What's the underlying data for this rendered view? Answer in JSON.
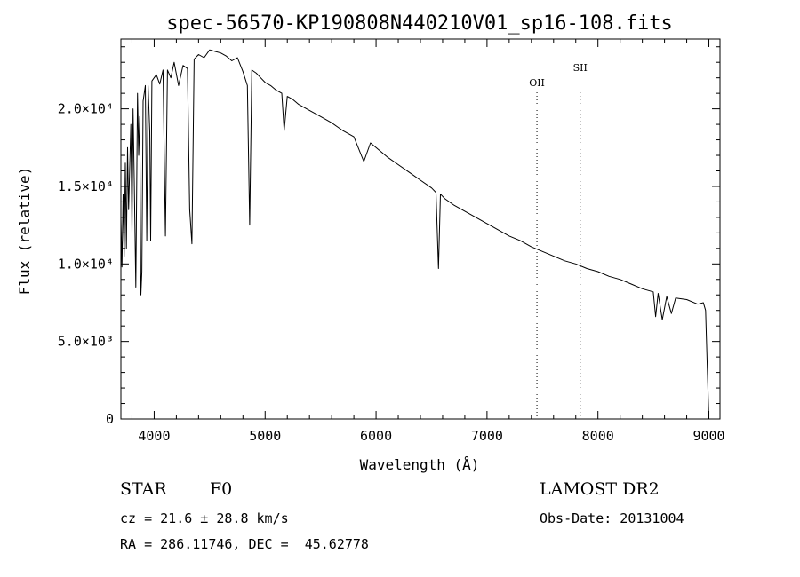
{
  "chart_data": {
    "type": "line",
    "title": "spec-56570-KP190808N440210V01_sp16-108.fits",
    "xlabel": "Wavelength (Å)",
    "ylabel": "Flux (relative)",
    "xlim": [
      3700,
      9100
    ],
    "ylim": [
      0,
      24500
    ],
    "grid": false,
    "x_ticks": [
      {
        "value": 4000,
        "label": "4000"
      },
      {
        "value": 5000,
        "label": "5000"
      },
      {
        "value": 6000,
        "label": "6000"
      },
      {
        "value": 7000,
        "label": "7000"
      },
      {
        "value": 8000,
        "label": "8000"
      },
      {
        "value": 9000,
        "label": "9000"
      }
    ],
    "y_ticks": [
      {
        "value": 0,
        "label": "0"
      },
      {
        "value": 5000,
        "label": "5.0×10³"
      },
      {
        "value": 10000,
        "label": "1.0×10⁴"
      },
      {
        "value": 15000,
        "label": "1.5×10⁴"
      },
      {
        "value": 20000,
        "label": "2.0×10⁴"
      }
    ],
    "lines": [
      {
        "name": "OII",
        "x": 7450
      },
      {
        "name": "SII",
        "x": 7840
      }
    ],
    "series": [
      {
        "x": [
          3700,
          3710,
          3720,
          3730,
          3740,
          3750,
          3760,
          3770,
          3790,
          3800,
          3810,
          3820,
          3835,
          3850,
          3860,
          3870,
          3880,
          3889,
          3900,
          3920,
          3933,
          3945,
          3960,
          3968,
          3980,
          4000,
          4020,
          4050,
          4080,
          4101,
          4120,
          4150,
          4180,
          4220,
          4260,
          4300,
          4320,
          4340,
          4360,
          4400,
          4450,
          4500,
          4550,
          4600,
          4650,
          4700,
          4750,
          4800,
          4840,
          4861,
          4880,
          4920,
          4960,
          5000,
          5050,
          5100,
          5150,
          5172,
          5200,
          5250,
          5300,
          5400,
          5500,
          5600,
          5700,
          5800,
          5890,
          5950,
          6000,
          6100,
          6200,
          6300,
          6400,
          6500,
          6540,
          6563,
          6580,
          6620,
          6700,
          6800,
          6900,
          7000,
          7100,
          7200,
          7300,
          7400,
          7500,
          7600,
          7700,
          7800,
          7900,
          8000,
          8100,
          8200,
          8300,
          8400,
          8498,
          8520,
          8542,
          8580,
          8620,
          8662,
          8700,
          8800,
          8900,
          8950,
          8970,
          8985,
          9000
        ],
        "y": [
          13000,
          9800,
          14500,
          10500,
          16500,
          11000,
          17500,
          13500,
          19000,
          12000,
          20000,
          15500,
          8500,
          21000,
          17000,
          19500,
          8000,
          9500,
          20500,
          21500,
          11500,
          21500,
          18500,
          11500,
          21800,
          22000,
          22200,
          21600,
          22500,
          11800,
          22500,
          22000,
          23000,
          21500,
          22800,
          22600,
          13500,
          11300,
          23200,
          23500,
          23300,
          23800,
          23700,
          23600,
          23400,
          23100,
          23300,
          22400,
          21500,
          12500,
          22500,
          22300,
          22000,
          21700,
          21500,
          21200,
          21000,
          18600,
          20800,
          20600,
          20300,
          19900,
          19500,
          19100,
          18600,
          18200,
          16600,
          17800,
          17500,
          16900,
          16400,
          15900,
          15400,
          14900,
          14600,
          9700,
          14500,
          14200,
          13800,
          13400,
          13000,
          12600,
          12200,
          11800,
          11500,
          11100,
          10800,
          10500,
          10200,
          10000,
          9700,
          9500,
          9200,
          9000,
          8700,
          8400,
          8200,
          6600,
          8100,
          6400,
          7900,
          6800,
          7800,
          7700,
          7400,
          7500,
          7000,
          3500,
          0
        ]
      }
    ]
  },
  "info": {
    "object_class": "STAR",
    "subclass": "F0",
    "survey": "LAMOST DR2",
    "cz": "cz = 21.6 ± 28.8 km/s",
    "obs_date": "Obs-Date: 20131004",
    "coords": "RA = 286.11746, DEC =  45.62778"
  }
}
